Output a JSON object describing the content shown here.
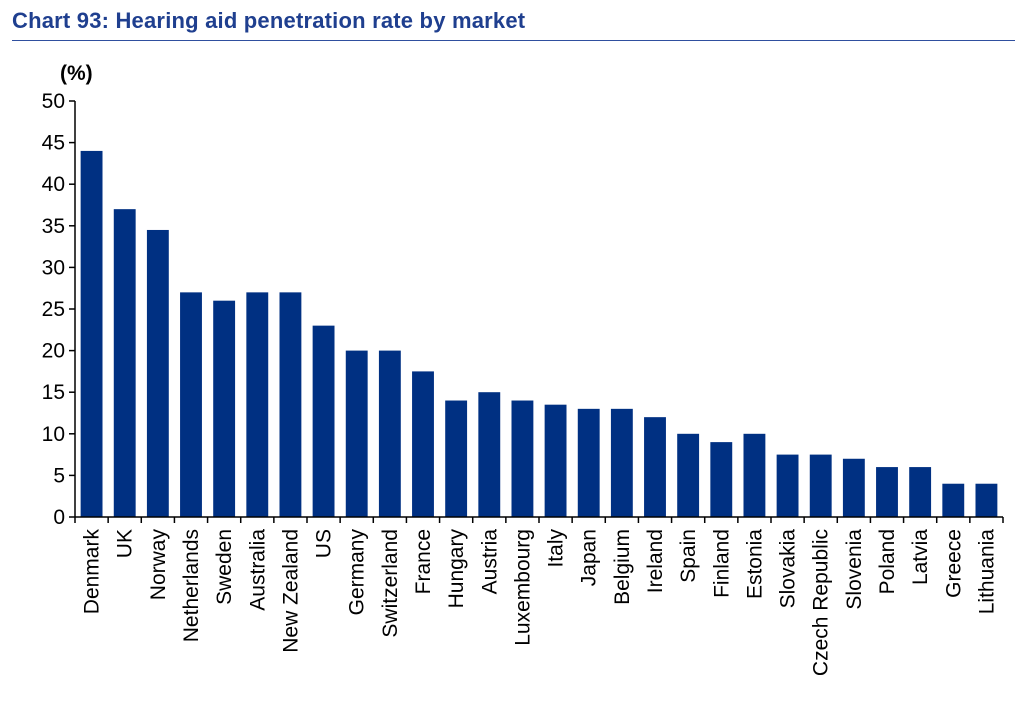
{
  "title": "Chart 93: Hearing aid penetration rate by market",
  "colors": {
    "bar": "#003082",
    "title": "#1f3f8f",
    "axis": "#000000"
  },
  "chart_data": {
    "type": "bar",
    "title": "Chart 93: Hearing aid penetration rate by market",
    "xlabel": "",
    "ylabel": "(%)",
    "ylim": [
      0,
      50
    ],
    "yticks": [
      0,
      5,
      10,
      15,
      20,
      25,
      30,
      35,
      40,
      45,
      50
    ],
    "grid": false,
    "legend": "none",
    "categories": [
      "Denmark",
      "UK",
      "Norway",
      "Netherlands",
      "Sweden",
      "Australia",
      "New Zealand",
      "US",
      "Germany",
      "Switzerland",
      "France",
      "Hungary",
      "Austria",
      "Luxembourg",
      "Italy",
      "Japan",
      "Belgium",
      "Ireland",
      "Spain",
      "Finland",
      "Estonia",
      "Slovakia",
      "Czech Republic",
      "Slovenia",
      "Poland",
      "Latvia",
      "Greece",
      "Lithuania"
    ],
    "values": [
      44,
      37,
      34.5,
      27,
      26,
      27,
      27,
      23,
      20,
      20,
      17.5,
      14,
      15,
      14,
      13.5,
      13,
      13,
      12,
      10,
      9,
      10,
      7.5,
      7.5,
      7,
      6,
      6,
      4,
      4
    ]
  }
}
